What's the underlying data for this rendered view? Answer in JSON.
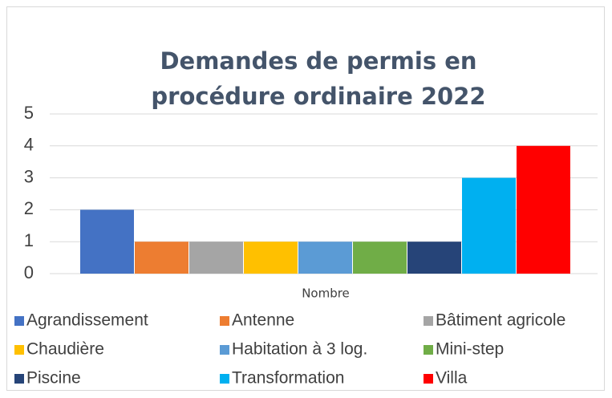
{
  "chart_data": {
    "type": "bar",
    "title": "Demandes de permis en procédure ordinaire 2022",
    "categories": [
      "Nombre"
    ],
    "series": [
      {
        "name": "Agrandissement",
        "color": "#4472c4",
        "values": [
          2
        ]
      },
      {
        "name": "Antenne",
        "color": "#ed7d31",
        "values": [
          1
        ]
      },
      {
        "name": "Bâtiment agricole",
        "color": "#a5a5a5",
        "values": [
          1
        ]
      },
      {
        "name": "Chaudière",
        "color": "#ffc000",
        "values": [
          1
        ]
      },
      {
        "name": "Habitation à 3 log.",
        "color": "#5b9bd5",
        "values": [
          1
        ]
      },
      {
        "name": "Mini-step",
        "color": "#70ad47",
        "values": [
          1
        ]
      },
      {
        "name": "Piscine",
        "color": "#264478",
        "values": [
          1
        ]
      },
      {
        "name": "Transformation",
        "color": "#00b0f0",
        "values": [
          3
        ]
      },
      {
        "name": "Villa",
        "color": "#ff0000",
        "values": [
          4
        ]
      }
    ],
    "ylim": [
      0,
      5
    ],
    "yticks": [
      0,
      1,
      2,
      3,
      4,
      5
    ],
    "grid": true,
    "legend": "bottom"
  }
}
